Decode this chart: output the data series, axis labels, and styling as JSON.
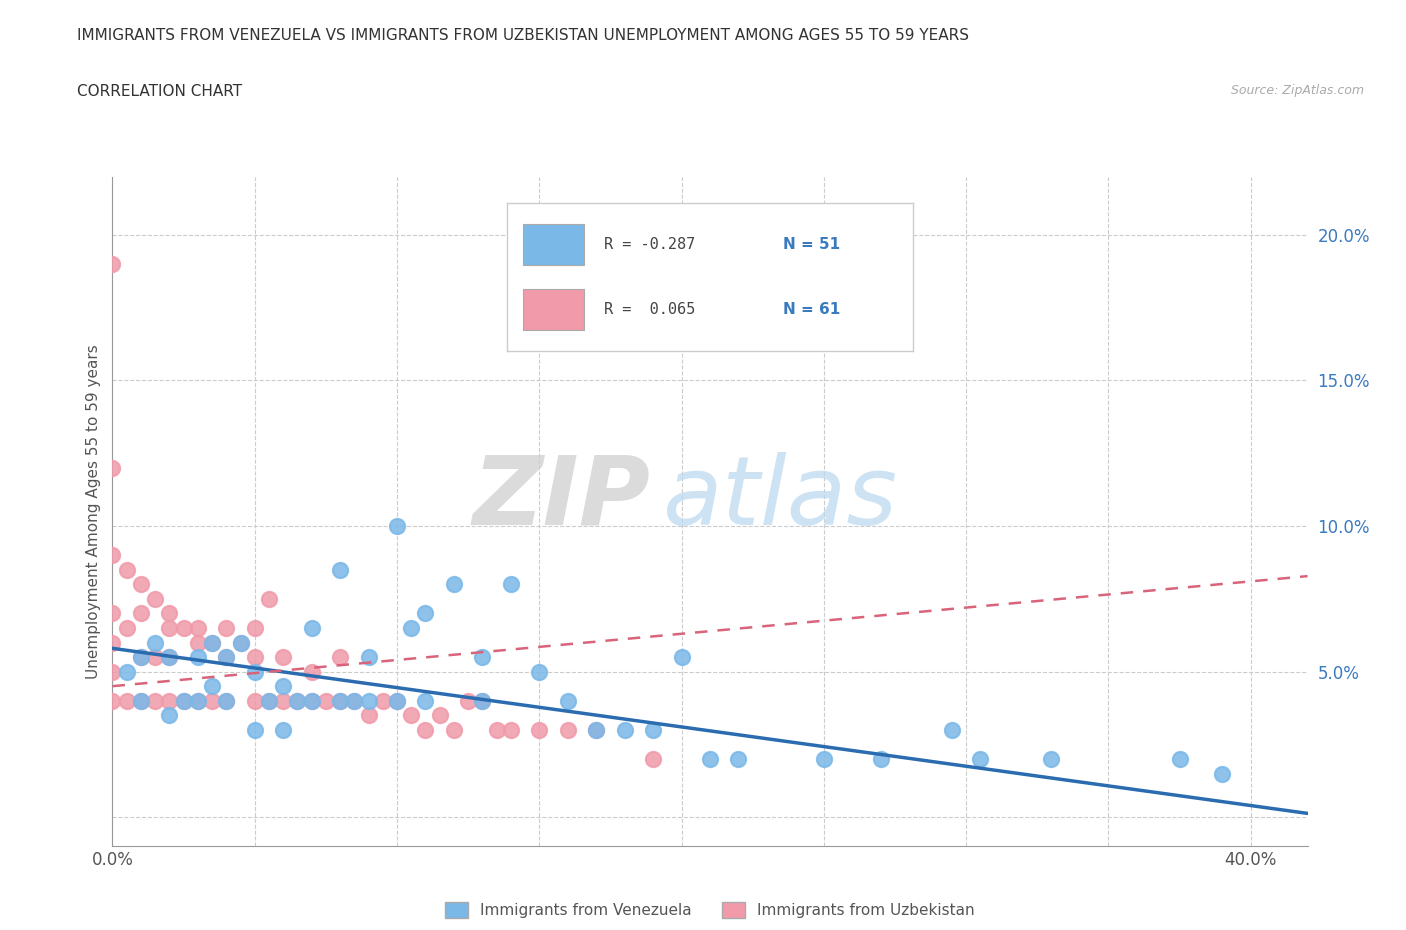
{
  "title_line1": "IMMIGRANTS FROM VENEZUELA VS IMMIGRANTS FROM UZBEKISTAN UNEMPLOYMENT AMONG AGES 55 TO 59 YEARS",
  "title_line2": "CORRELATION CHART",
  "source": "Source: ZipAtlas.com",
  "ylabel": "Unemployment Among Ages 55 to 59 years",
  "xlim": [
    0.0,
    0.42
  ],
  "ylim": [
    -0.01,
    0.22
  ],
  "xticks": [
    0.0,
    0.05,
    0.1,
    0.15,
    0.2,
    0.25,
    0.3,
    0.35,
    0.4
  ],
  "xticklabels": [
    "0.0%",
    "",
    "",
    "",
    "",
    "",
    "",
    "",
    "40.0%"
  ],
  "yticks": [
    0.0,
    0.05,
    0.1,
    0.15,
    0.2
  ],
  "yticklabels": [
    "",
    "5.0%",
    "10.0%",
    "15.0%",
    "20.0%"
  ],
  "color_venezuela": "#7ab8e8",
  "color_uzbekistan": "#f09aaa",
  "trendline_venezuela_slope": -0.135,
  "trendline_venezuela_intercept": 0.058,
  "trendline_uzbekistan_slope": 0.09,
  "trendline_uzbekistan_intercept": 0.045,
  "venezuela_x": [
    0.005,
    0.01,
    0.01,
    0.015,
    0.02,
    0.02,
    0.025,
    0.03,
    0.03,
    0.035,
    0.035,
    0.04,
    0.04,
    0.045,
    0.05,
    0.05,
    0.055,
    0.06,
    0.06,
    0.065,
    0.07,
    0.07,
    0.08,
    0.08,
    0.085,
    0.09,
    0.09,
    0.1,
    0.1,
    0.105,
    0.11,
    0.11,
    0.12,
    0.13,
    0.13,
    0.14,
    0.15,
    0.16,
    0.17,
    0.18,
    0.19,
    0.2,
    0.21,
    0.22,
    0.25,
    0.27,
    0.295,
    0.305,
    0.33,
    0.375,
    0.39
  ],
  "venezuela_y": [
    0.05,
    0.04,
    0.055,
    0.06,
    0.035,
    0.055,
    0.04,
    0.04,
    0.055,
    0.045,
    0.06,
    0.04,
    0.055,
    0.06,
    0.03,
    0.05,
    0.04,
    0.03,
    0.045,
    0.04,
    0.04,
    0.065,
    0.04,
    0.085,
    0.04,
    0.04,
    0.055,
    0.1,
    0.04,
    0.065,
    0.04,
    0.07,
    0.08,
    0.04,
    0.055,
    0.08,
    0.05,
    0.04,
    0.03,
    0.03,
    0.03,
    0.055,
    0.02,
    0.02,
    0.02,
    0.02,
    0.03,
    0.02,
    0.02,
    0.02,
    0.015
  ],
  "uzbekistan_x": [
    0.0,
    0.0,
    0.0,
    0.0,
    0.0,
    0.0,
    0.0,
    0.005,
    0.005,
    0.005,
    0.01,
    0.01,
    0.01,
    0.01,
    0.015,
    0.015,
    0.015,
    0.02,
    0.02,
    0.02,
    0.02,
    0.025,
    0.025,
    0.03,
    0.03,
    0.03,
    0.035,
    0.035,
    0.04,
    0.04,
    0.04,
    0.045,
    0.05,
    0.05,
    0.05,
    0.055,
    0.055,
    0.06,
    0.06,
    0.065,
    0.07,
    0.07,
    0.075,
    0.08,
    0.08,
    0.085,
    0.09,
    0.095,
    0.1,
    0.105,
    0.11,
    0.115,
    0.12,
    0.125,
    0.13,
    0.135,
    0.14,
    0.15,
    0.16,
    0.17,
    0.19
  ],
  "uzbekistan_y": [
    0.19,
    0.12,
    0.09,
    0.07,
    0.06,
    0.05,
    0.04,
    0.085,
    0.065,
    0.04,
    0.08,
    0.07,
    0.055,
    0.04,
    0.075,
    0.055,
    0.04,
    0.07,
    0.065,
    0.055,
    0.04,
    0.065,
    0.04,
    0.065,
    0.06,
    0.04,
    0.06,
    0.04,
    0.065,
    0.055,
    0.04,
    0.06,
    0.065,
    0.055,
    0.04,
    0.075,
    0.04,
    0.055,
    0.04,
    0.04,
    0.05,
    0.04,
    0.04,
    0.055,
    0.04,
    0.04,
    0.035,
    0.04,
    0.04,
    0.035,
    0.03,
    0.035,
    0.03,
    0.04,
    0.04,
    0.03,
    0.03,
    0.03,
    0.03,
    0.03,
    0.02
  ],
  "watermark_zip": "ZIP",
  "watermark_atlas": "atlas",
  "background_color": "#ffffff"
}
